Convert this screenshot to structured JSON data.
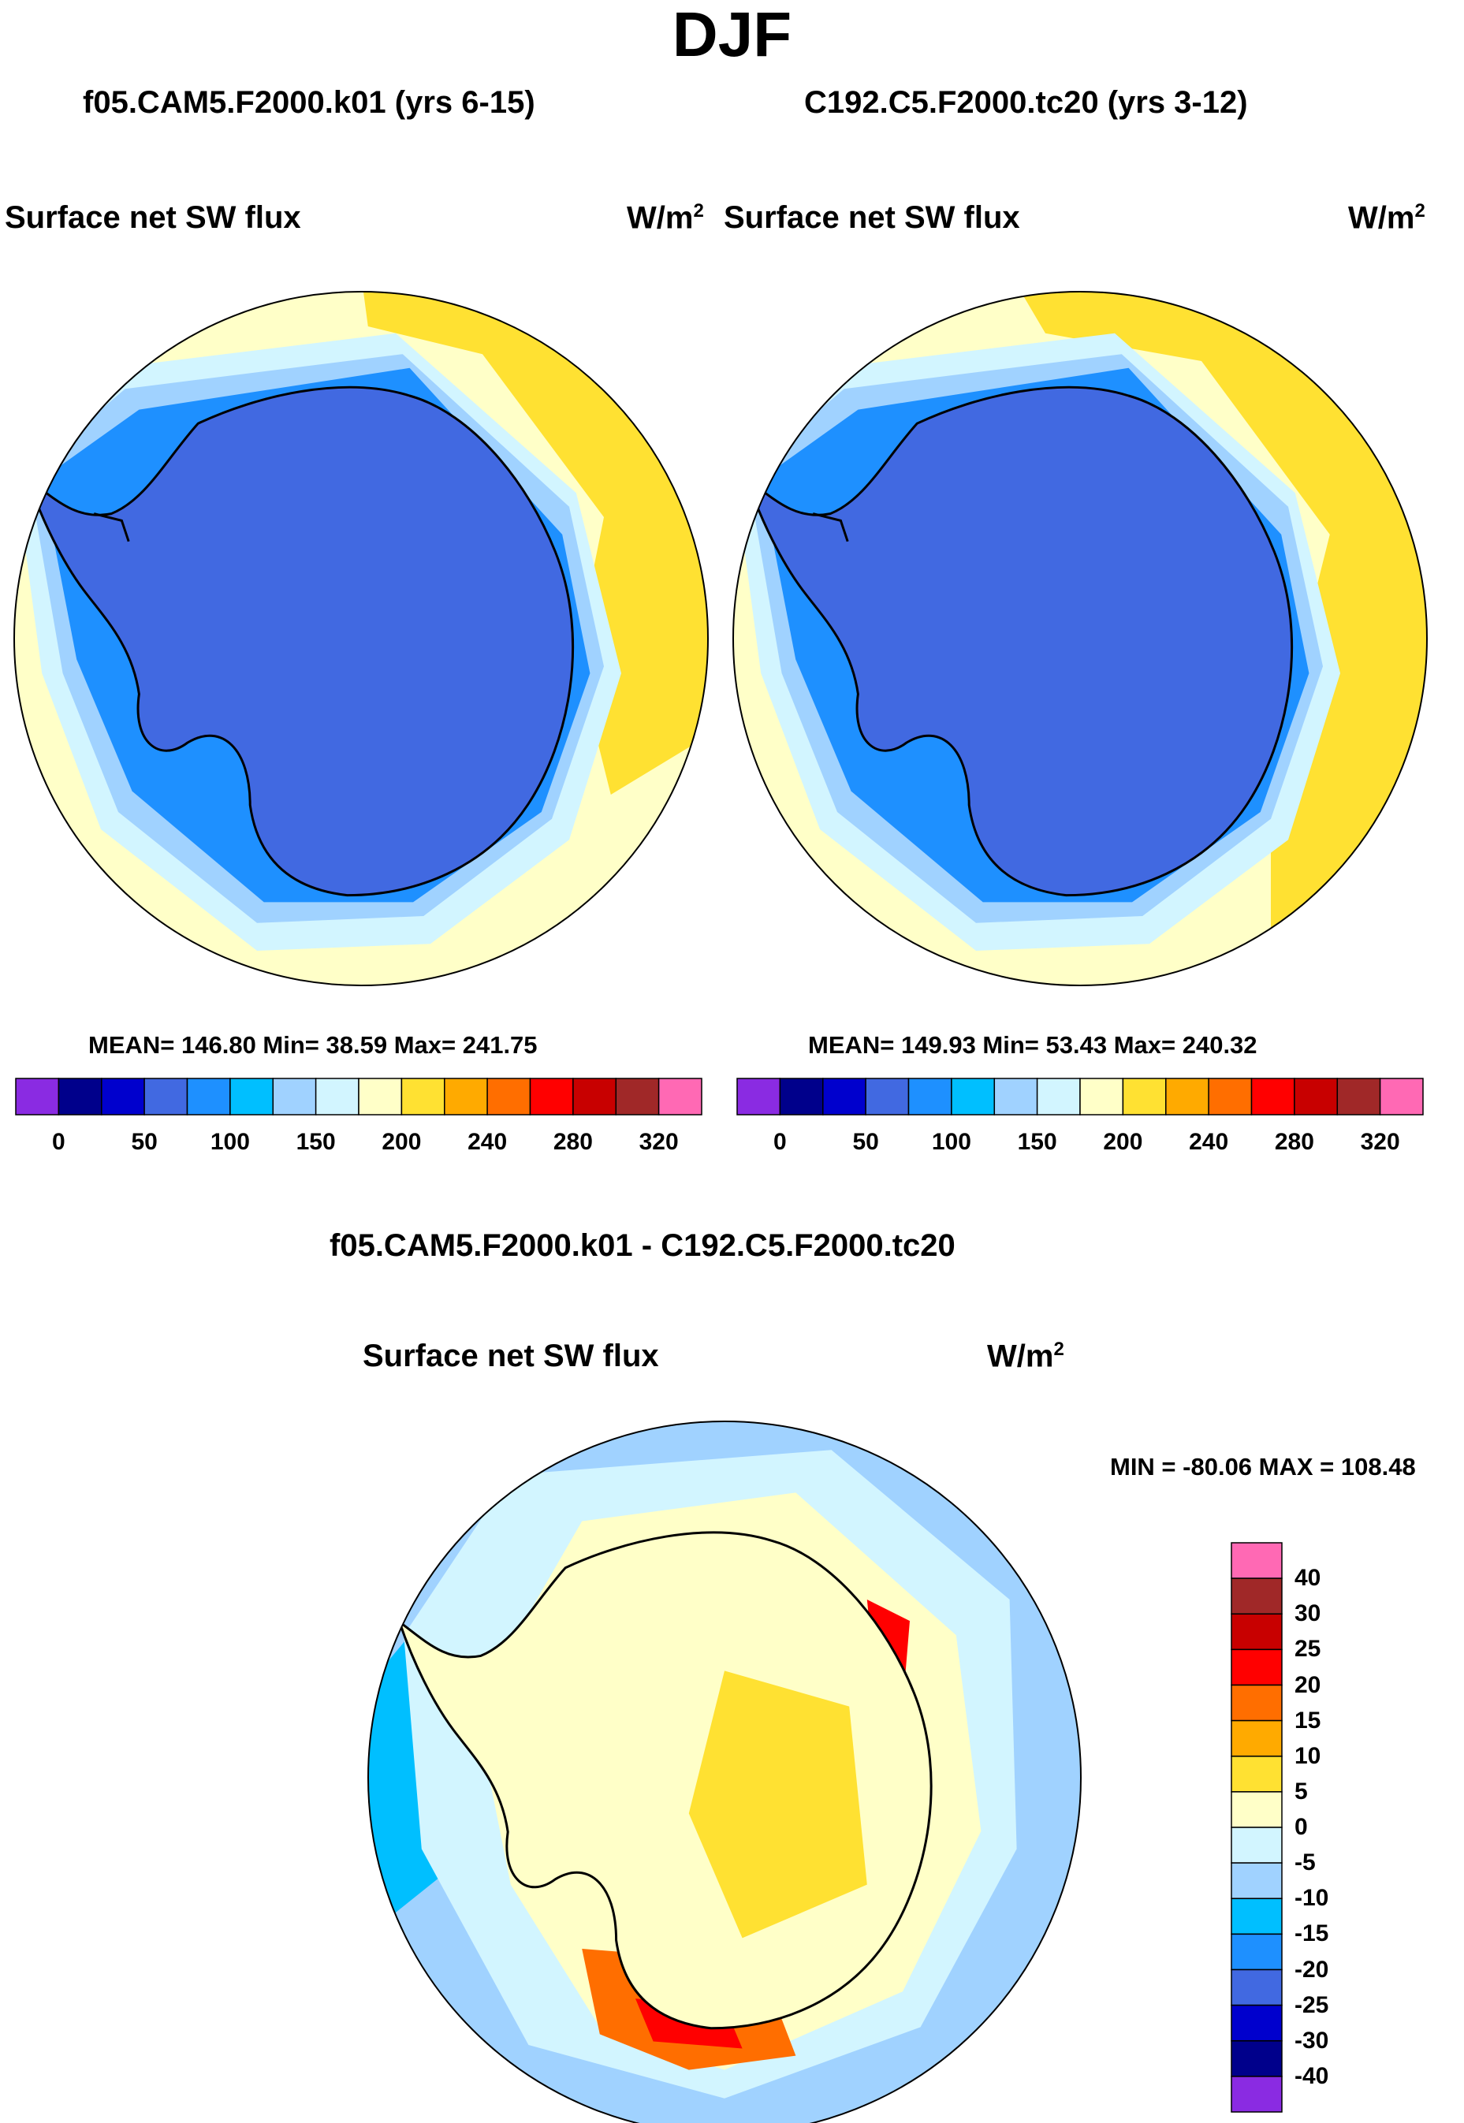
{
  "figure": {
    "title": "DJF",
    "diff_title": "f05.CAM5.F2000.k01 - C192.C5.F2000.tc20"
  },
  "colors": {
    "abs_scale": [
      "#8a2be2",
      "#00008b",
      "#0000cd",
      "#4169e1",
      "#1e90ff",
      "#00bfff",
      "#a0d2ff",
      "#d2f5ff",
      "#ffffc8",
      "#ffe132",
      "#ffaa00",
      "#ff6e00",
      "#ff0000",
      "#c80000",
      "#a02828",
      "#ff69b4"
    ],
    "diff_scale": [
      "#8a2be2",
      "#00008b",
      "#0000cd",
      "#4169e1",
      "#1e90ff",
      "#00bfff",
      "#a0d2ff",
      "#d2f5ff",
      "#ffffc8",
      "#ffe132",
      "#ffaa00",
      "#ff6e00",
      "#ff0000",
      "#c80000",
      "#a02828",
      "#ff69b4"
    ],
    "land": "#4169e1",
    "ocean_default": "#ffffc8"
  },
  "chart_data": [
    {
      "type": "heatmap",
      "title": "f05.CAM5.F2000.k01 (yrs 6-15)",
      "variable": "Surface net SW flux",
      "units": "W/m",
      "units_sup": "2",
      "projection": "south polar stereographic",
      "stats": {
        "mean": "146.80",
        "min": "38.59",
        "max": "241.75",
        "text": "MEAN= 146.80  Min=  38.59  Max= 241.75"
      },
      "colorbar_labels": [
        "0",
        "50",
        "100",
        "150",
        "200",
        "240",
        "280",
        "320"
      ],
      "colorbar_levels": [
        0,
        25,
        50,
        75,
        100,
        125,
        150,
        175,
        200,
        220,
        240,
        260,
        280,
        300,
        320
      ],
      "value_range": [
        38.59,
        241.75
      ]
    },
    {
      "type": "heatmap",
      "title": "C192.C5.F2000.tc20 (yrs 3-12)",
      "variable": "Surface net SW flux",
      "units": "W/m",
      "units_sup": "2",
      "projection": "south polar stereographic",
      "stats": {
        "mean": "149.93",
        "min": "53.43",
        "max": "240.32",
        "text": "MEAN= 149.93  Min=  53.43  Max= 240.32"
      },
      "colorbar_labels": [
        "0",
        "50",
        "100",
        "150",
        "200",
        "240",
        "280",
        "320"
      ],
      "colorbar_levels": [
        0,
        25,
        50,
        75,
        100,
        125,
        150,
        175,
        200,
        220,
        240,
        260,
        280,
        300,
        320
      ],
      "value_range": [
        53.43,
        240.32
      ]
    },
    {
      "type": "heatmap",
      "title": "f05.CAM5.F2000.k01 - C192.C5.F2000.tc20",
      "variable": "Surface net SW flux",
      "units": "W/m",
      "units_sup": "2",
      "projection": "south polar stereographic",
      "stats": {
        "min": "-80.06",
        "max": "108.48",
        "text": "MIN = -80.06 MAX = 108.48"
      },
      "colorbar_labels": [
        "40",
        "30",
        "25",
        "20",
        "15",
        "10",
        "5",
        "0",
        "-5",
        "-10",
        "-15",
        "-20",
        "-25",
        "-30",
        "-40"
      ],
      "colorbar_levels": [
        -40,
        -30,
        -25,
        -20,
        -15,
        -10,
        -5,
        0,
        5,
        10,
        15,
        20,
        25,
        30,
        40
      ],
      "value_range": [
        -80.06,
        108.48
      ]
    }
  ]
}
